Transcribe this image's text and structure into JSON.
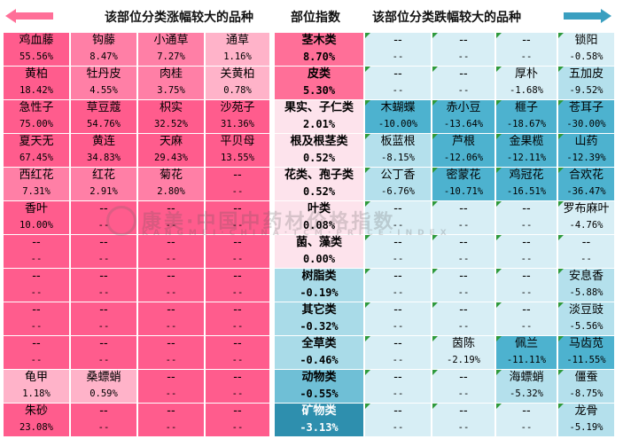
{
  "header": {
    "left_title": "该部位分类涨幅较大的品种",
    "mid_title": "部位指数",
    "right_title": "该部位分类跌幅较大的品种"
  },
  "watermark": {
    "text_cn": "康美·中国中药材价格指数",
    "text_en": "KANGMEI·CHINA·TCM·PRICE·INDEX"
  },
  "colors": {
    "up_strong": "#ff5c8d",
    "up_medium": "#ff7fa6",
    "up_light": "#ffb3c9",
    "up_pale": "#ffd9e5",
    "index_pink": "#ff6f98",
    "index_pale": "#fde3ec",
    "index_light_blue": "#a9dbe8",
    "index_blue": "#6fbfd6",
    "index_dark_blue": "#2e8fae",
    "down_pale": "#d7eef5",
    "down_light": "#b4e0ec",
    "down_strong": "#4db2cf"
  },
  "chart_data": {
    "type": "table",
    "title": "",
    "columns": [
      "该部位分类涨幅较大的品种",
      "部位指数",
      "该部位分类跌幅较大的品种"
    ],
    "rows": [
      {
        "up": [
          [
            "鸡血藤",
            "55.56%"
          ],
          [
            "钩藤",
            "8.47%"
          ],
          [
            "小通草",
            "7.27%"
          ],
          [
            "通草",
            "1.16%"
          ]
        ],
        "part": [
          "茎木类",
          "8.70%"
        ],
        "down": [
          [
            "--",
            "--"
          ],
          [
            "--",
            "--"
          ],
          [
            "--",
            "--"
          ],
          [
            "锁阳",
            "-0.58%"
          ]
        ]
      },
      {
        "up": [
          [
            "黄柏",
            "18.42%"
          ],
          [
            "牡丹皮",
            "4.55%"
          ],
          [
            "肉桂",
            "3.75%"
          ],
          [
            "关黄柏",
            "0.78%"
          ]
        ],
        "part": [
          "皮类",
          "5.30%"
        ],
        "down": [
          [
            "--",
            "--"
          ],
          [
            "--",
            "--"
          ],
          [
            "厚朴",
            "-1.68%"
          ],
          [
            "五加皮",
            "-9.52%"
          ]
        ]
      },
      {
        "up": [
          [
            "急性子",
            "75.00%"
          ],
          [
            "草豆蔻",
            "54.76%"
          ],
          [
            "枳实",
            "32.52%"
          ],
          [
            "沙苑子",
            "31.36%"
          ]
        ],
        "part": [
          "果实、子仁类",
          "2.01%"
        ],
        "down": [
          [
            "木蝴蝶",
            "-10.00%"
          ],
          [
            "赤小豆",
            "-13.64%"
          ],
          [
            "榧子",
            "-18.67%"
          ],
          [
            "苍耳子",
            "-30.00%"
          ]
        ]
      },
      {
        "up": [
          [
            "夏天无",
            "67.45%"
          ],
          [
            "黄连",
            "34.83%"
          ],
          [
            "天麻",
            "29.43%"
          ],
          [
            "平贝母",
            "13.55%"
          ]
        ],
        "part": [
          "根及根茎类",
          "0.52%"
        ],
        "down": [
          [
            "板蓝根",
            "-8.15%"
          ],
          [
            "芦根",
            "-12.06%"
          ],
          [
            "金果榄",
            "-12.11%"
          ],
          [
            "山药",
            "-12.39%"
          ]
        ]
      },
      {
        "up": [
          [
            "西红花",
            "7.31%"
          ],
          [
            "红花",
            "2.91%"
          ],
          [
            "菊花",
            "2.80%"
          ],
          [
            "--",
            "--"
          ]
        ],
        "part": [
          "花类、孢子类",
          "0.52%"
        ],
        "down": [
          [
            "公丁香",
            "-6.76%"
          ],
          [
            "密蒙花",
            "-10.71%"
          ],
          [
            "鸡冠花",
            "-16.51%"
          ],
          [
            "合欢花",
            "-36.47%"
          ]
        ]
      },
      {
        "up": [
          [
            "香叶",
            "10.00%"
          ],
          [
            "--",
            "--"
          ],
          [
            "--",
            "--"
          ],
          [
            "--",
            "--"
          ]
        ],
        "part": [
          "叶类",
          "0.08%"
        ],
        "down": [
          [
            "--",
            "--"
          ],
          [
            "--",
            "--"
          ],
          [
            "--",
            "--"
          ],
          [
            "罗布麻叶",
            "-4.76%"
          ]
        ]
      },
      {
        "up": [
          [
            "--",
            "--"
          ],
          [
            "--",
            "--"
          ],
          [
            "--",
            "--"
          ],
          [
            "--",
            "--"
          ]
        ],
        "part": [
          "菌、藻类",
          "0.00%"
        ],
        "down": [
          [
            "--",
            "--"
          ],
          [
            "--",
            "--"
          ],
          [
            "--",
            "--"
          ],
          [
            "--",
            "--"
          ]
        ]
      },
      {
        "up": [
          [
            "--",
            "--"
          ],
          [
            "--",
            "--"
          ],
          [
            "--",
            "--"
          ],
          [
            "--",
            "--"
          ]
        ],
        "part": [
          "树脂类",
          "-0.19%"
        ],
        "down": [
          [
            "--",
            "--"
          ],
          [
            "--",
            "--"
          ],
          [
            "--",
            "--"
          ],
          [
            "安息香",
            "-5.88%"
          ]
        ]
      },
      {
        "up": [
          [
            "--",
            "--"
          ],
          [
            "--",
            "--"
          ],
          [
            "--",
            "--"
          ],
          [
            "--",
            "--"
          ]
        ],
        "part": [
          "其它类",
          "-0.32%"
        ],
        "down": [
          [
            "--",
            "--"
          ],
          [
            "--",
            "--"
          ],
          [
            "--",
            "--"
          ],
          [
            "淡豆豉",
            "-5.56%"
          ]
        ]
      },
      {
        "up": [
          [
            "--",
            "--"
          ],
          [
            "--",
            "--"
          ],
          [
            "--",
            "--"
          ],
          [
            "--",
            "--"
          ]
        ],
        "part": [
          "全草类",
          "-0.46%"
        ],
        "down": [
          [
            "--",
            "--"
          ],
          [
            "茵陈",
            "-2.19%"
          ],
          [
            "佩兰",
            "-11.11%"
          ],
          [
            "马齿苋",
            "-11.55%"
          ]
        ]
      },
      {
        "up": [
          [
            "龟甲",
            "1.18%"
          ],
          [
            "桑螵蛸",
            "0.59%"
          ],
          [
            "--",
            "--"
          ],
          [
            "--",
            "--"
          ]
        ],
        "part": [
          "动物类",
          "-0.55%"
        ],
        "down": [
          [
            "--",
            "--"
          ],
          [
            "--",
            "--"
          ],
          [
            "海螵蛸",
            "-5.32%"
          ],
          [
            "僵蚕",
            "-8.75%"
          ]
        ]
      },
      {
        "up": [
          [
            "朱砂",
            "23.08%"
          ],
          [
            "--",
            "--"
          ],
          [
            "--",
            "--"
          ],
          [
            "--",
            "--"
          ]
        ],
        "part": [
          "矿物类",
          "-3.13%"
        ],
        "down": [
          [
            "--",
            "--"
          ],
          [
            "--",
            "--"
          ],
          [
            "--",
            "--"
          ],
          [
            "龙骨",
            "-5.19%"
          ]
        ]
      }
    ]
  }
}
